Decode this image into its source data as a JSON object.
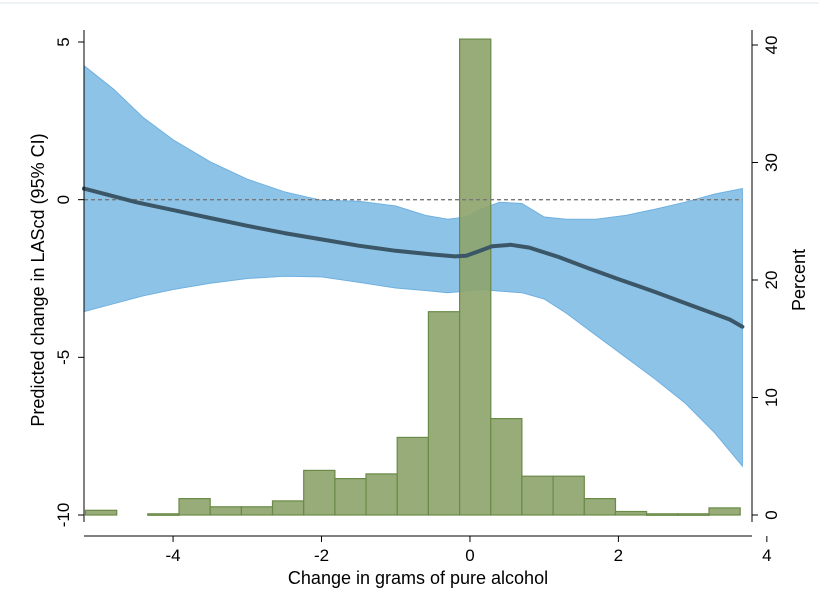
{
  "chart_data": {
    "type": "bar",
    "xlabel": "Change in grams of pure alcohol",
    "ylabel_left": "Predicted change in LAScd (95% CI)",
    "ylabel_right": "Percent",
    "xlim": [
      -5.2,
      3.8
    ],
    "ylim_left": [
      -10.35,
      5.0
    ],
    "ylim_right": [
      0,
      40.5
    ],
    "x_ticks": [
      {
        "value": -4,
        "label": "-4"
      },
      {
        "value": -2,
        "label": "-2"
      },
      {
        "value": 0,
        "label": "0"
      },
      {
        "value": 2,
        "label": "2"
      },
      {
        "value": 4,
        "label": "4"
      }
    ],
    "y_ticks_left": [
      {
        "value": 5,
        "label": "5"
      },
      {
        "value": 0,
        "label": "0"
      },
      {
        "value": -5,
        "label": "-5"
      },
      {
        "value": -10,
        "label": "-10"
      }
    ],
    "y_ticks_right": [
      {
        "value": 40,
        "label": "40"
      },
      {
        "value": 30,
        "label": "30"
      },
      {
        "value": 20,
        "label": "20"
      },
      {
        "value": 10,
        "label": "10"
      },
      {
        "value": 0,
        "label": "0"
      }
    ],
    "reference_line_y": 0,
    "histogram": {
      "name": "Percent",
      "color": "#8EA56E",
      "edge_color": "#6A8A48",
      "bin_width": 0.42,
      "bins": [
        {
          "x": -4.97,
          "percent": 0.4
        },
        {
          "x": -4.13,
          "percent": 0.1
        },
        {
          "x": -3.71,
          "percent": 1.4
        },
        {
          "x": -3.29,
          "percent": 0.7
        },
        {
          "x": -2.87,
          "percent": 0.7
        },
        {
          "x": -2.45,
          "percent": 1.2
        },
        {
          "x": -2.03,
          "percent": 3.8
        },
        {
          "x": -1.61,
          "percent": 3.1
        },
        {
          "x": -1.19,
          "percent": 3.5
        },
        {
          "x": -0.77,
          "percent": 6.6
        },
        {
          "x": -0.35,
          "percent": 17.3
        },
        {
          "x": 0.07,
          "percent": 40.5
        },
        {
          "x": 0.49,
          "percent": 8.2
        },
        {
          "x": 0.91,
          "percent": 3.3
        },
        {
          "x": 1.33,
          "percent": 3.3
        },
        {
          "x": 1.75,
          "percent": 1.4
        },
        {
          "x": 2.17,
          "percent": 0.3
        },
        {
          "x": 2.59,
          "percent": 0.1
        },
        {
          "x": 3.01,
          "percent": 0.1
        },
        {
          "x": 3.43,
          "percent": 0.6
        }
      ]
    },
    "fit_line": {
      "color": "#3B5767",
      "points": [
        [
          -5.2,
          0.35
        ],
        [
          -4.5,
          -0.08
        ],
        [
          -4.0,
          -0.33
        ],
        [
          -3.5,
          -0.58
        ],
        [
          -3.0,
          -0.83
        ],
        [
          -2.5,
          -1.06
        ],
        [
          -2.0,
          -1.26
        ],
        [
          -1.5,
          -1.46
        ],
        [
          -1.0,
          -1.62
        ],
        [
          -0.5,
          -1.74
        ],
        [
          -0.2,
          -1.8
        ],
        [
          -0.05,
          -1.78
        ],
        [
          0.1,
          -1.65
        ],
        [
          0.3,
          -1.48
        ],
        [
          0.55,
          -1.43
        ],
        [
          0.8,
          -1.52
        ],
        [
          1.2,
          -1.82
        ],
        [
          1.6,
          -2.18
        ],
        [
          2.0,
          -2.52
        ],
        [
          2.5,
          -2.93
        ],
        [
          3.0,
          -3.37
        ],
        [
          3.5,
          -3.8
        ],
        [
          3.67,
          -4.03
        ]
      ]
    },
    "ci_band": {
      "color": "#8EC3E8",
      "points": [
        [
          -5.2,
          4.25,
          -3.55
        ],
        [
          -4.8,
          3.5,
          -3.3
        ],
        [
          -4.4,
          2.6,
          -3.05
        ],
        [
          -4.0,
          1.9,
          -2.85
        ],
        [
          -3.5,
          1.2,
          -2.65
        ],
        [
          -3.0,
          0.65,
          -2.5
        ],
        [
          -2.5,
          0.25,
          -2.43
        ],
        [
          -2.0,
          -0.02,
          -2.45
        ],
        [
          -1.5,
          -0.05,
          -2.62
        ],
        [
          -1.0,
          -0.2,
          -2.8
        ],
        [
          -0.6,
          -0.5,
          -2.88
        ],
        [
          -0.3,
          -0.62,
          -2.95
        ],
        [
          -0.05,
          -0.55,
          -2.9
        ],
        [
          0.15,
          -0.3,
          -2.85
        ],
        [
          0.4,
          -0.08,
          -2.9
        ],
        [
          0.7,
          -0.12,
          -2.95
        ],
        [
          1.0,
          -0.55,
          -3.15
        ],
        [
          1.3,
          -0.62,
          -3.6
        ],
        [
          1.7,
          -0.62,
          -4.3
        ],
        [
          2.1,
          -0.5,
          -5.0
        ],
        [
          2.5,
          -0.3,
          -5.7
        ],
        [
          2.9,
          -0.08,
          -6.45
        ],
        [
          3.3,
          0.18,
          -7.4
        ],
        [
          3.67,
          0.35,
          -8.45
        ]
      ]
    }
  }
}
